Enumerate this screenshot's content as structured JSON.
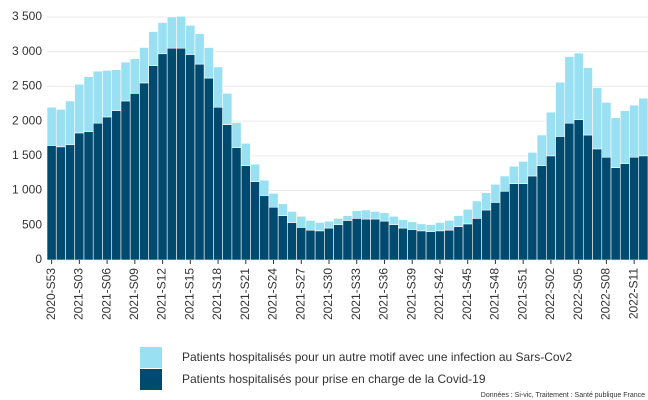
{
  "chart_data": {
    "type": "stacked_bar",
    "categories": [
      "2020-S53",
      null,
      null,
      "2021-S03",
      null,
      null,
      "2021-S06",
      null,
      null,
      "2021-S09",
      null,
      null,
      "2021-S12",
      null,
      null,
      "2021-S15",
      null,
      null,
      "2021-S18",
      null,
      null,
      "2021-S21",
      null,
      null,
      "2021-S24",
      null,
      null,
      "2021-S27",
      null,
      null,
      "2021-S30",
      null,
      null,
      "2021-S33",
      null,
      null,
      "2021-S36",
      null,
      null,
      "2021-S39",
      null,
      null,
      "2021-S42",
      null,
      null,
      "2021-S45",
      null,
      null,
      "2021-S48",
      null,
      null,
      "2021-S51",
      null,
      null,
      "2022-S02",
      null,
      null,
      "2022-S05",
      null,
      null,
      "2022-S08",
      null,
      null,
      "2022-S11",
      null
    ],
    "series": [
      {
        "name": "Patients hospitalisés pour prise en charge de la Covid-19",
        "color": "#00496f",
        "values": [
          1650,
          1630,
          1660,
          1830,
          1850,
          1970,
          2060,
          2150,
          2290,
          2400,
          2550,
          2800,
          2970,
          3050,
          3050,
          2960,
          2820,
          2620,
          2200,
          1950,
          1620,
          1360,
          1130,
          930,
          760,
          640,
          540,
          470,
          430,
          420,
          460,
          510,
          570,
          600,
          590,
          590,
          560,
          510,
          460,
          440,
          420,
          410,
          420,
          430,
          480,
          520,
          600,
          720,
          830,
          990,
          1100,
          1100,
          1210,
          1360,
          1500,
          1780,
          1970,
          2020,
          1800,
          1600,
          1480,
          1330,
          1390,
          1480,
          1500
        ]
      },
      {
        "name": "Patients hospitalisés pour un autre motif avec une infection au Sars-Cov2",
        "color": "#99e0f2",
        "values": [
          550,
          540,
          630,
          700,
          790,
          750,
          670,
          590,
          560,
          500,
          510,
          490,
          450,
          450,
          460,
          420,
          440,
          440,
          580,
          450,
          360,
          320,
          250,
          220,
          200,
          170,
          160,
          160,
          140,
          120,
          100,
          90,
          70,
          110,
          130,
          110,
          120,
          120,
          120,
          110,
          100,
          100,
          120,
          140,
          160,
          210,
          250,
          250,
          260,
          220,
          250,
          320,
          340,
          440,
          630,
          780,
          960,
          960,
          970,
          880,
          790,
          720,
          760,
          750,
          830
        ]
      }
    ],
    "ylim": [
      0,
      3600
    ],
    "yticks": [
      0,
      500,
      {
        "value": 1000,
        "label": "1 000"
      },
      {
        "value": 1500,
        "label": "1 500"
      },
      {
        "value": 2000,
        "label": "2 000"
      },
      {
        "value": 2500,
        "label": "2 500"
      },
      {
        "value": 3000,
        "label": "3 000"
      },
      {
        "value": 3500,
        "label": "3 500"
      }
    ],
    "grid": true,
    "legend": "bottom",
    "source": "Données : Si-vic, Traitement : Santé publique France"
  }
}
